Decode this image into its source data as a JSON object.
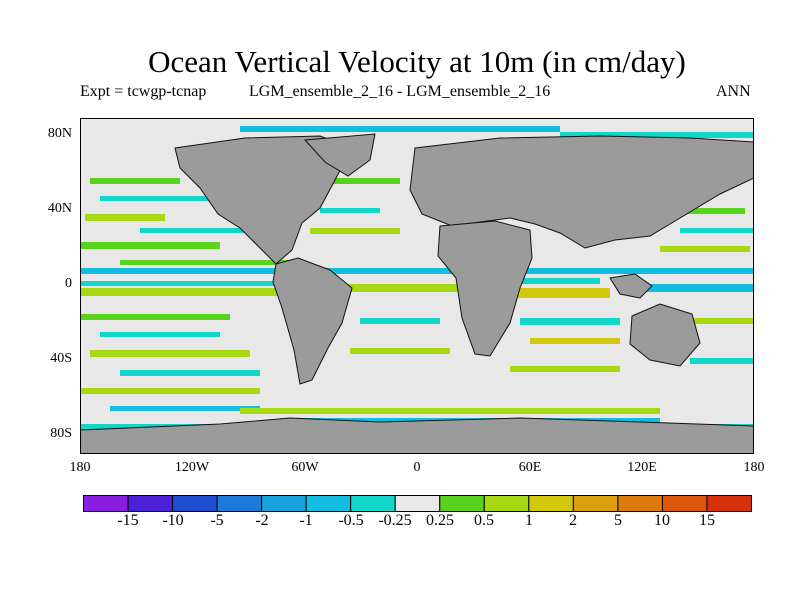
{
  "title": "Ocean Vertical Velocity at 10m (in cm/day)",
  "experiment": "Expt = tcwgp-tcnap",
  "case": "LGM_ensemble_2_16 - LGM_ensemble_2_16",
  "season": "ANN",
  "lat_labels": [
    "80N",
    "40N",
    "0",
    "40S",
    "80S"
  ],
  "lon_labels": [
    "180",
    "120W",
    "60W",
    "0",
    "60E",
    "120E",
    "180"
  ],
  "colorbar": {
    "labels": [
      "-15",
      "-10",
      "-5",
      "-2",
      "-1",
      "-0.5",
      "-0.25",
      "0.25",
      "0.5",
      "1",
      "2",
      "5",
      "10",
      "15"
    ],
    "colors": [
      "#8a1ee0",
      "#4b20d8",
      "#1f4fd0",
      "#1d7ad8",
      "#19a3dc",
      "#14bde0",
      "#12d6c8",
      "#e8e8e8",
      "#58d21c",
      "#a6d814",
      "#d2c80e",
      "#dca00c",
      "#de7a0c",
      "#dc560c",
      "#d8300c"
    ]
  },
  "colors": {
    "land": "#9b9b9b",
    "neutral": "#e8e8e8"
  }
}
